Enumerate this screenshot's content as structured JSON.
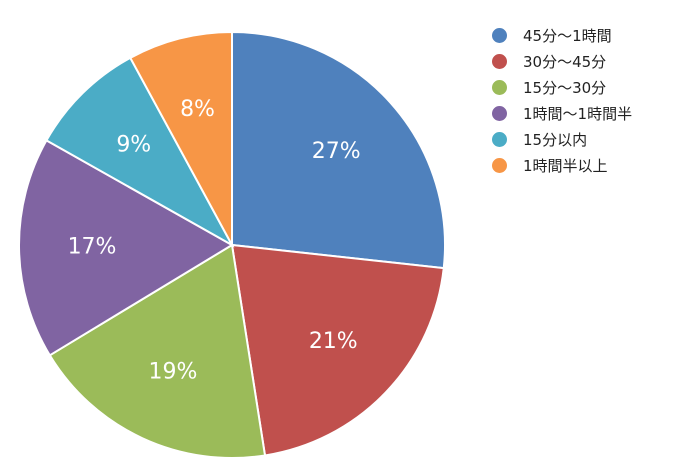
{
  "chart_data": {
    "type": "pie",
    "title": "",
    "slices": [
      {
        "label": "45分〜1時間",
        "value": 27,
        "value_label": "27%",
        "color": "#4F81BD"
      },
      {
        "label": "30分〜45分",
        "value": 21,
        "value_label": "21%",
        "color": "#C0504D"
      },
      {
        "label": "15分〜30分",
        "value": 19,
        "value_label": "19%",
        "color": "#9BBB59"
      },
      {
        "label": "1時間〜1時間半",
        "value": 17,
        "value_label": "17%",
        "color": "#8064A2"
      },
      {
        "label": "15分以内",
        "value": 9,
        "value_label": "9%",
        "color": "#4BACC6"
      },
      {
        "label": "1時間半以上",
        "value": 8,
        "value_label": "8%",
        "color": "#F79646"
      }
    ],
    "legend_position": "top-right",
    "start_angle": "12 o'clock",
    "direction": "clockwise"
  }
}
